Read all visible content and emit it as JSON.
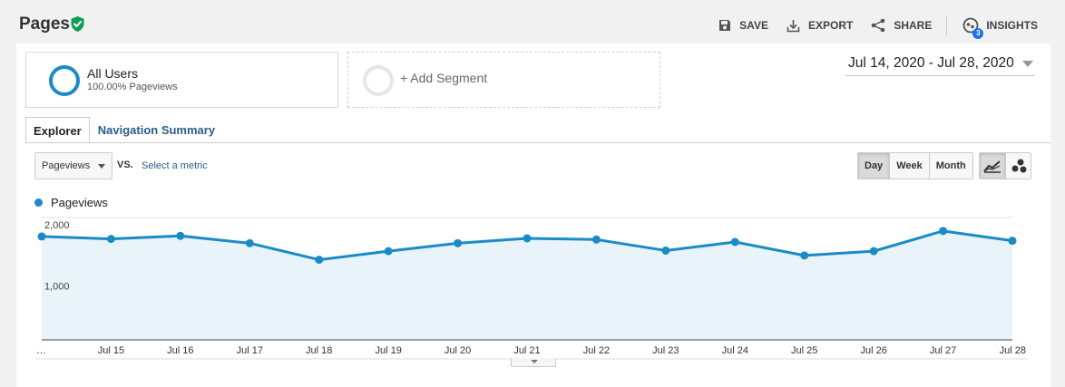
{
  "header": {
    "title": "Pages",
    "verified_icon": "shield-check-icon",
    "toolbar": [
      {
        "label": "SAVE",
        "icon": "save-icon"
      },
      {
        "label": "EXPORT",
        "icon": "export-icon"
      },
      {
        "label": "SHARE",
        "icon": "share-icon"
      },
      {
        "label": "INSIGHTS",
        "icon": "insights-icon",
        "badge": "3"
      }
    ]
  },
  "segments": {
    "active": {
      "name": "All Users",
      "detail": "100.00% Pageviews"
    },
    "add_label": "+ Add Segment"
  },
  "date_range": "Jul 14, 2020 - Jul 28, 2020",
  "tabs": [
    {
      "label": "Explorer",
      "active": true
    },
    {
      "label": "Navigation Summary",
      "active": false
    }
  ],
  "metrics": {
    "primary": "Pageviews",
    "vs_label": "VS.",
    "secondary_link": "Select a metric"
  },
  "periods": [
    {
      "label": "Day",
      "active": true
    },
    {
      "label": "Week",
      "active": false
    },
    {
      "label": "Month",
      "active": false
    }
  ],
  "chart_types": [
    {
      "icon": "line-chart-icon",
      "active": true
    },
    {
      "icon": "motion-chart-icon",
      "active": false
    }
  ],
  "chart_data": {
    "type": "area",
    "series": [
      {
        "name": "Pageviews",
        "color": "#1a8bc7",
        "values": [
          1690,
          1650,
          1700,
          1580,
          1310,
          1450,
          1580,
          1660,
          1640,
          1460,
          1600,
          1380,
          1450,
          1780,
          1620
        ]
      }
    ],
    "x_labels": [
      "…",
      "Jul 15",
      "Jul 16",
      "Jul 17",
      "Jul 18",
      "Jul 19",
      "Jul 20",
      "Jul 21",
      "Jul 22",
      "Jul 23",
      "Jul 24",
      "Jul 25",
      "Jul 26",
      "Jul 27",
      "Jul 28"
    ],
    "y_ticks": [
      {
        "value": 2000,
        "label": "2,000"
      },
      {
        "value": 1000,
        "label": "1,000"
      }
    ],
    "ylim": [
      0,
      2000
    ],
    "grid": true,
    "fill_color": "#e8f3fa",
    "line_color": "#1a8bc7"
  }
}
